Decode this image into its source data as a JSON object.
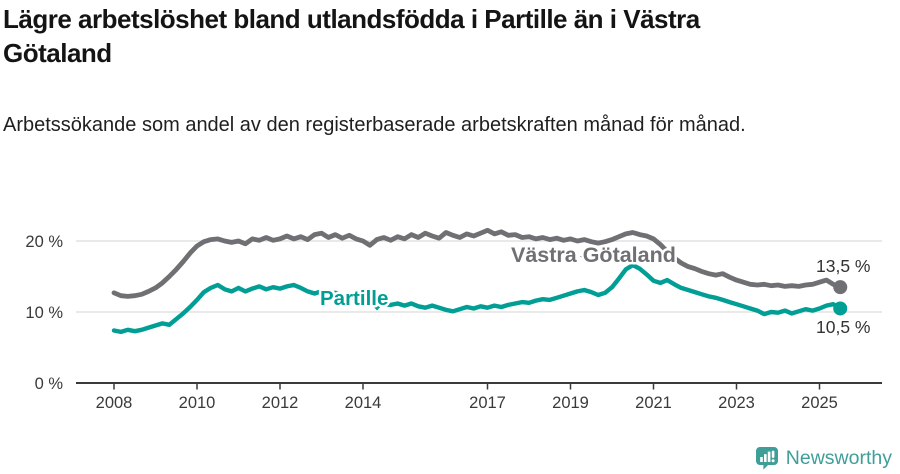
{
  "title": "Lägre arbetslöshet bland utlandsfödda i Partille än i Västra Götaland",
  "subtitle": "Arbetssökande som andel av den registerbaserade arbetskraften månad för månad.",
  "footer": {
    "brand": "Newsworthy",
    "logo_icon": "newsworthy-badge-icon"
  },
  "colors": {
    "partille_line": "#009e94",
    "vastra_gotaland_line": "#6f6f74",
    "gridline": "#e2e2e2",
    "axis": "#3a3a3a",
    "tick_text": "#3a3a3a",
    "end_label_text": "#333333",
    "title_text": "#141414",
    "subtitle_text": "#1f1f1f",
    "brand_teal": "#3f9e98"
  },
  "chart_data": {
    "type": "line",
    "x_start_year": 2008.0,
    "x_step_years": 0.1666667,
    "x_ticks": [
      {
        "value": 2008,
        "label": "2008"
      },
      {
        "value": 2010,
        "label": "2010"
      },
      {
        "value": 2012,
        "label": "2012"
      },
      {
        "value": 2014,
        "label": "2014"
      },
      {
        "value": 2017,
        "label": "2017"
      },
      {
        "value": 2019,
        "label": "2019"
      },
      {
        "value": 2021,
        "label": "2021"
      },
      {
        "value": 2023,
        "label": "2023"
      },
      {
        "value": 2025,
        "label": "2025"
      }
    ],
    "y_ticks": [
      {
        "value": 0,
        "label": "0 %"
      },
      {
        "value": 10,
        "label": "10 %"
      },
      {
        "value": 20,
        "label": "20 %"
      }
    ],
    "y_gridlines": [
      10,
      20
    ],
    "ylim": [
      0,
      25
    ],
    "legend_position": "inline-labels",
    "grid": "horizontal-only",
    "series": [
      {
        "name": "Västra Götaland",
        "color": "#6f6f74",
        "end_label": "13,5 %",
        "end_value": 13.5,
        "values": [
          12.7,
          12.3,
          12.2,
          12.3,
          12.5,
          12.9,
          13.4,
          14.1,
          15.0,
          16.0,
          17.1,
          18.3,
          19.3,
          19.9,
          20.2,
          20.3,
          20.0,
          19.8,
          20.0,
          19.6,
          20.3,
          20.1,
          20.5,
          20.1,
          20.3,
          20.7,
          20.3,
          20.6,
          20.2,
          20.9,
          21.1,
          20.5,
          20.9,
          20.4,
          20.8,
          20.3,
          20.0,
          19.4,
          20.2,
          20.5,
          20.1,
          20.6,
          20.3,
          20.9,
          20.5,
          21.1,
          20.7,
          20.4,
          21.2,
          20.8,
          20.5,
          21.0,
          20.7,
          21.1,
          21.5,
          21.0,
          21.3,
          20.8,
          20.9,
          20.5,
          20.6,
          20.3,
          20.5,
          20.2,
          20.4,
          20.1,
          20.3,
          20.0,
          20.2,
          19.9,
          19.7,
          19.9,
          20.2,
          20.6,
          21.0,
          21.2,
          20.9,
          20.7,
          20.3,
          19.5,
          18.5,
          17.6,
          16.9,
          16.4,
          16.1,
          15.7,
          15.4,
          15.2,
          15.4,
          14.9,
          14.5,
          14.2,
          13.9,
          13.8,
          13.9,
          13.7,
          13.8,
          13.6,
          13.7,
          13.6,
          13.8,
          13.9,
          14.2,
          14.5,
          13.9,
          13.5
        ]
      },
      {
        "name": "Partille",
        "color": "#009e94",
        "end_label": "10,5 %",
        "end_value": 10.5,
        "values": [
          7.4,
          7.2,
          7.5,
          7.3,
          7.5,
          7.8,
          8.1,
          8.4,
          8.2,
          9.0,
          9.8,
          10.7,
          11.7,
          12.8,
          13.4,
          13.8,
          13.2,
          12.9,
          13.4,
          12.9,
          13.3,
          13.6,
          13.2,
          13.5,
          13.3,
          13.6,
          13.8,
          13.4,
          12.9,
          12.6,
          12.9,
          12.5,
          12.7,
          12.4,
          12.1,
          11.9,
          11.7,
          11.5,
          11.3,
          11.1,
          11.0,
          11.2,
          10.9,
          11.2,
          10.8,
          10.6,
          10.9,
          10.6,
          10.3,
          10.1,
          10.4,
          10.7,
          10.5,
          10.8,
          10.6,
          10.9,
          10.7,
          11.0,
          11.2,
          11.4,
          11.3,
          11.6,
          11.8,
          11.7,
          12.0,
          12.3,
          12.6,
          12.9,
          13.1,
          12.8,
          12.4,
          12.7,
          13.5,
          14.7,
          16.0,
          16.6,
          16.1,
          15.3,
          14.4,
          14.1,
          14.5,
          13.9,
          13.4,
          13.1,
          12.8,
          12.5,
          12.2,
          12.0,
          11.7,
          11.4,
          11.1,
          10.8,
          10.5,
          10.2,
          9.7,
          10.0,
          9.9,
          10.2,
          9.8,
          10.1,
          10.4,
          10.2,
          10.5,
          10.9,
          11.1,
          10.5
        ]
      }
    ]
  }
}
